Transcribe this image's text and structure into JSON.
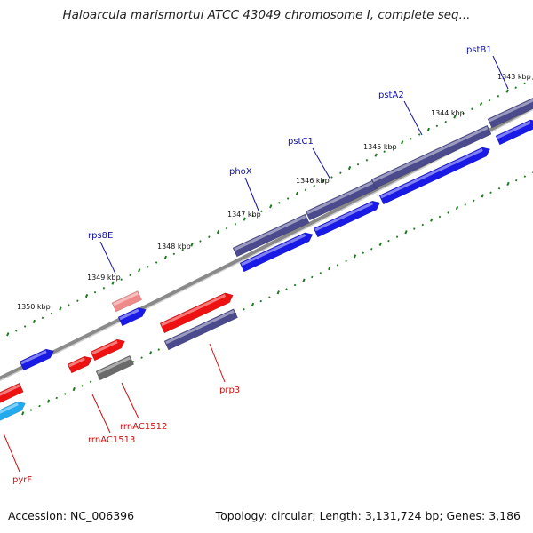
{
  "title": "Haloarcula marismortui ATCC 43049 chromosome I, complete seq...",
  "footer": {
    "accession": "Accession: NC_006396",
    "summary": "Topology: circular; Length: 3,131,724 bp; Genes: 3,186"
  },
  "colors": {
    "forward_cds": "#1a1ae6",
    "track_dark": "#4a4a8c",
    "rrna": "#ee1111",
    "rrna_pale": "#f08a8a",
    "grey_feature": "#6a6a6a",
    "cyan_feature": "#22aaee",
    "backbone": "#8a8a8a",
    "ticks": "#1e7a1e",
    "label_blue": "#1111aa",
    "label_red": "#cc1111"
  },
  "ticks": [
    {
      "label": "1343 kbp"
    },
    {
      "label": "1344 kbp"
    },
    {
      "label": "1345 kbp"
    },
    {
      "label": "1346 kbp"
    },
    {
      "label": "1347 kbp"
    },
    {
      "label": "1348 kbp"
    },
    {
      "label": "1349 kbp"
    },
    {
      "label": "1350 kbp"
    }
  ],
  "genes": [
    {
      "name": "pstB1",
      "color": "label_blue"
    },
    {
      "name": "pstA2",
      "color": "label_blue"
    },
    {
      "name": "pstC1",
      "color": "label_blue"
    },
    {
      "name": "phoX",
      "color": "label_blue"
    },
    {
      "name": "rps8E",
      "color": "label_blue"
    },
    {
      "name": "prp3",
      "color": "label_red"
    },
    {
      "name": "rrnAC1512",
      "color": "label_red"
    },
    {
      "name": "rrnAC1513",
      "color": "label_red"
    },
    {
      "name": "pyrF",
      "color": "label_red"
    }
  ]
}
